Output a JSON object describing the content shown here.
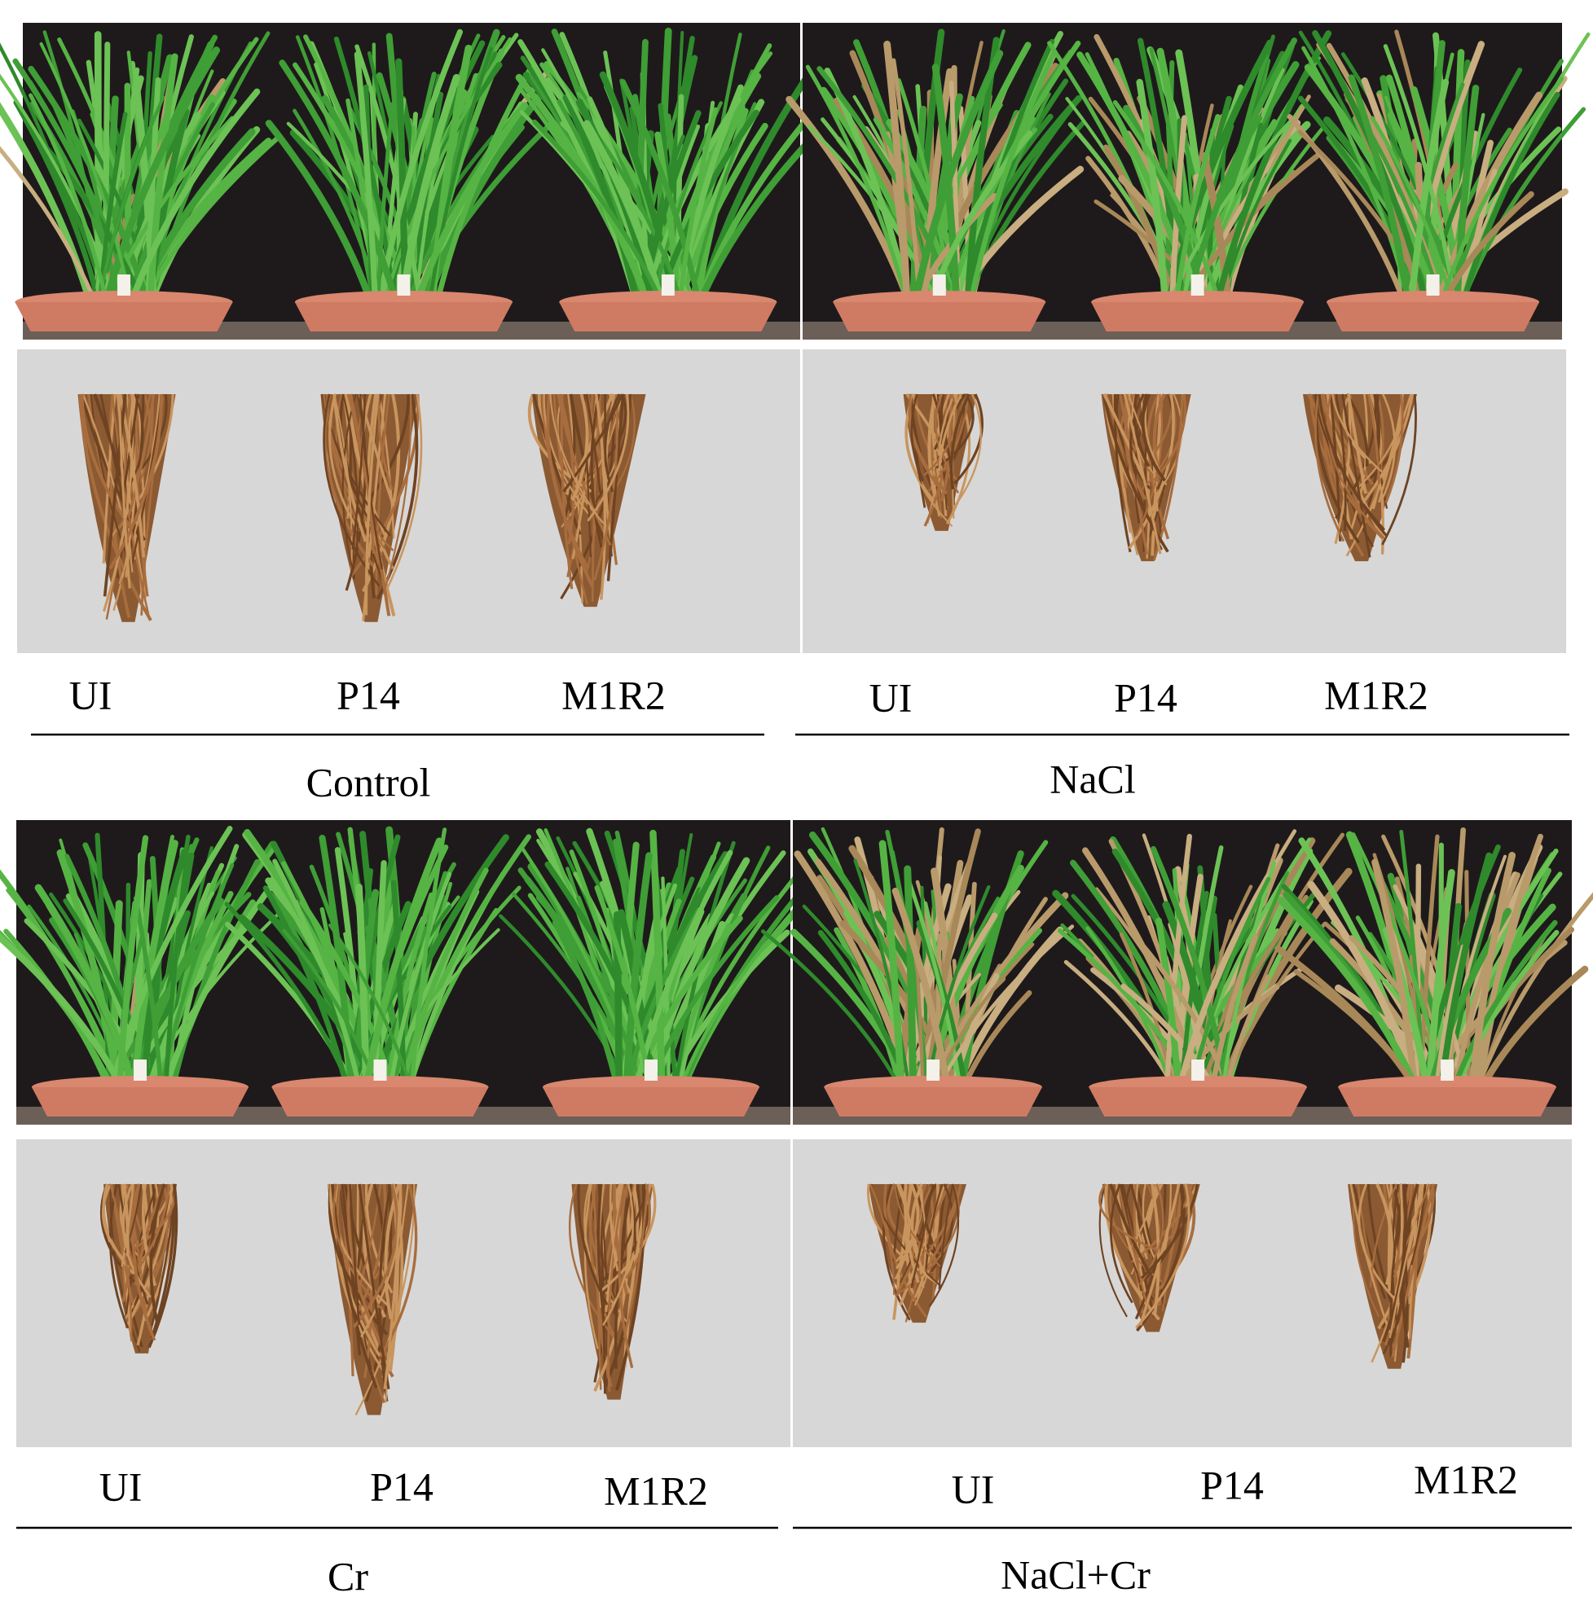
{
  "panels": [
    {
      "treatment": "Control",
      "labels": [
        "UI",
        "P14",
        "M1R2"
      ]
    },
    {
      "treatment": "NaCl",
      "labels": [
        "UI",
        "P14",
        "M1R2"
      ]
    },
    {
      "treatment": "Cr",
      "labels": [
        "UI",
        "P14",
        "M1R2"
      ]
    },
    {
      "treatment": "NaCl+Cr",
      "labels": [
        "UI",
        "P14",
        "M1R2"
      ]
    }
  ]
}
